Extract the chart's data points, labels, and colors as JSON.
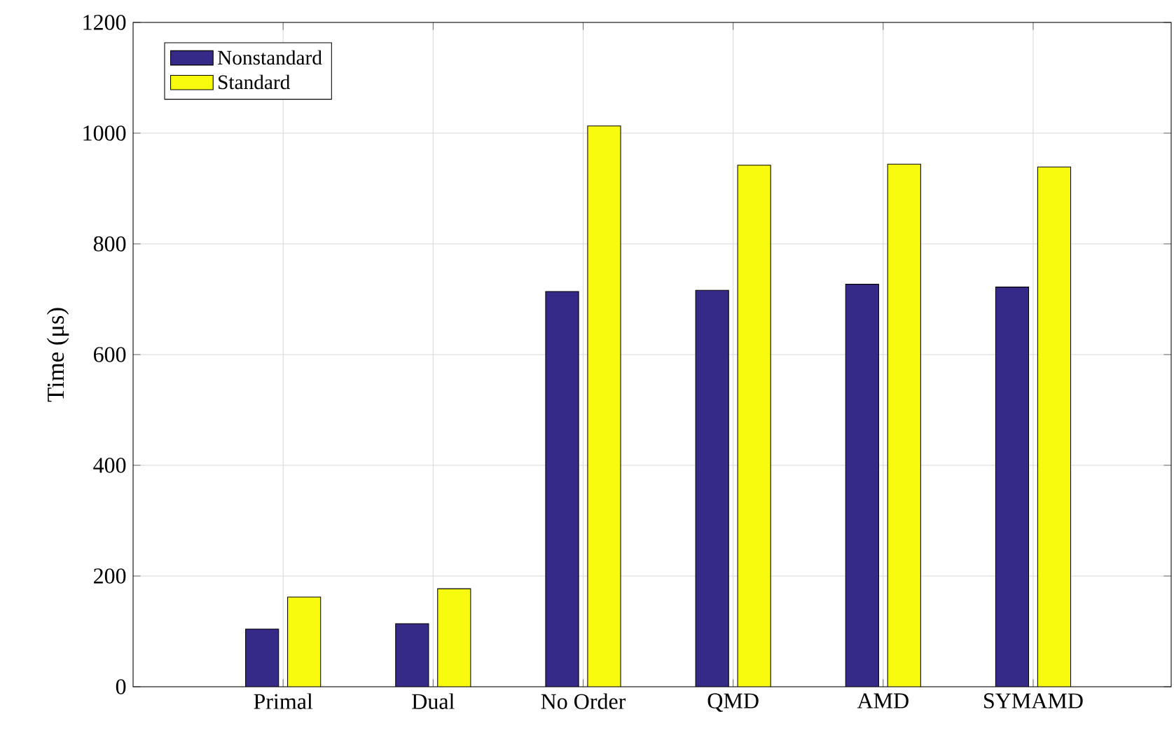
{
  "chart_data": {
    "type": "bar",
    "ylabel": "Time (μs)",
    "categories": [
      "Primal",
      "Dual",
      "No Order",
      "QMD",
      "AMD",
      "SYMAMD"
    ],
    "series": [
      {
        "name": "Nonstandard",
        "color": "#352a87",
        "values": [
          104,
          114,
          714,
          716,
          727,
          722
        ]
      },
      {
        "name": "Standard",
        "color": "#f9fb0e",
        "values": [
          162,
          177,
          1013,
          942,
          944,
          939
        ]
      }
    ],
    "ylim": [
      0,
      1200
    ],
    "yticks": [
      0,
      200,
      400,
      600,
      800,
      1000,
      1200
    ],
    "grid": true,
    "legend": "top left"
  }
}
